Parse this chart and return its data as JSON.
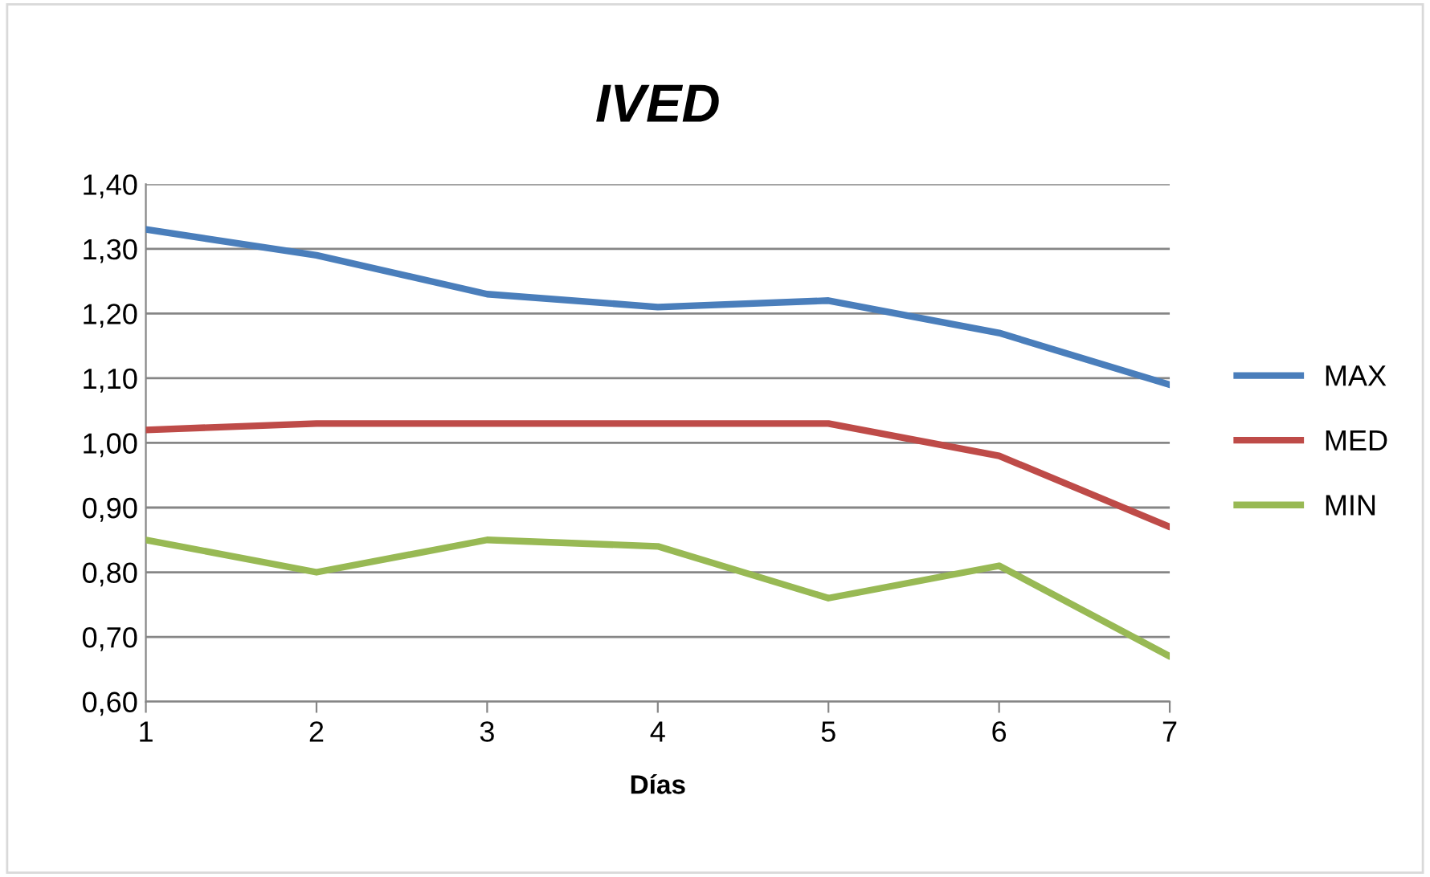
{
  "chart_data": {
    "type": "line",
    "title": "IVED",
    "xlabel": "Días",
    "x": [
      1,
      2,
      3,
      4,
      5,
      6,
      7
    ],
    "series": [
      {
        "name": "MAX",
        "color": "#4a7ebb",
        "values": [
          1.33,
          1.29,
          1.23,
          1.21,
          1.22,
          1.17,
          1.09
        ]
      },
      {
        "name": "MED",
        "color": "#be4b48",
        "values": [
          1.02,
          1.03,
          1.03,
          1.03,
          1.03,
          0.98,
          0.87
        ]
      },
      {
        "name": "MIN",
        "color": "#98b954",
        "values": [
          0.85,
          0.8,
          0.85,
          0.84,
          0.76,
          0.81,
          0.67
        ]
      }
    ],
    "xlim": [
      1,
      7
    ],
    "xticks": [
      1,
      2,
      3,
      4,
      5,
      6,
      7
    ],
    "ylim": [
      0.6,
      1.4
    ],
    "yticks": [
      {
        "value": 0.6,
        "label": "0,60"
      },
      {
        "value": 0.7,
        "label": "0,70"
      },
      {
        "value": 0.8,
        "label": "0,80"
      },
      {
        "value": 0.9,
        "label": "0,90"
      },
      {
        "value": 1.0,
        "label": "1,00"
      },
      {
        "value": 1.1,
        "label": "1,10"
      },
      {
        "value": 1.2,
        "label": "1,20"
      },
      {
        "value": 1.3,
        "label": "1,30"
      },
      {
        "value": 1.4,
        "label": "1,40"
      }
    ],
    "grid": "y",
    "legend": "right",
    "line_style": "solid"
  }
}
